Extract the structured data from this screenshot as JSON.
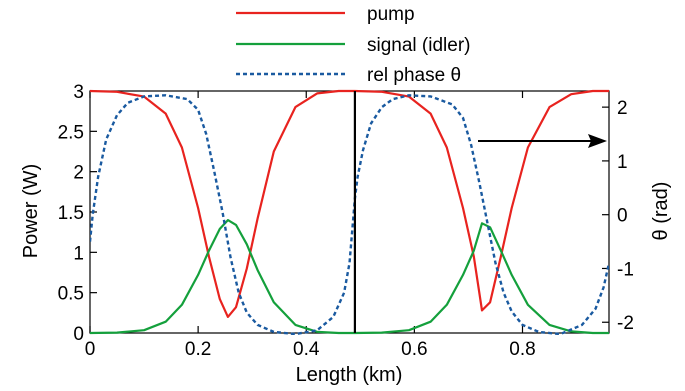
{
  "chart_data": {
    "type": "line",
    "xlabel": "Length (km)",
    "ylabel": "Power (W)",
    "y2label": "θ  (rad)",
    "xlim": [
      0,
      0.96
    ],
    "ylim": [
      0,
      3
    ],
    "y2lim": [
      -2.2,
      2.3
    ],
    "xticks": [
      "0",
      "0.2",
      "0.4",
      "0.6",
      "0.8"
    ],
    "xtick_values": [
      0,
      0.2,
      0.4,
      0.6,
      0.8
    ],
    "yticks": [
      "0",
      "0.5",
      "1",
      "1.5",
      "2",
      "2.5",
      "3"
    ],
    "ytick_values": [
      0,
      0.5,
      1,
      1.5,
      2,
      2.5,
      3
    ],
    "y2ticks": [
      "-2",
      "-1",
      "0",
      "1",
      "2"
    ],
    "y2tick_values": [
      -2,
      -1,
      0,
      1,
      2
    ],
    "legend_position": "top-center",
    "vertical_line_x": 0.49,
    "arrow_direction": "right",
    "series": [
      {
        "name": "pump",
        "axis": "left",
        "color": "#e8231f",
        "style": "solid",
        "x": [
          0,
          0.05,
          0.1,
          0.14,
          0.17,
          0.2,
          0.22,
          0.24,
          0.255,
          0.27,
          0.29,
          0.31,
          0.34,
          0.38,
          0.42,
          0.46,
          0.49,
          0.54,
          0.59,
          0.63,
          0.66,
          0.69,
          0.71,
          0.725,
          0.74,
          0.76,
          0.78,
          0.81,
          0.85,
          0.89,
          0.93,
          0.96
        ],
        "values": [
          3.0,
          2.99,
          2.93,
          2.72,
          2.3,
          1.55,
          0.95,
          0.42,
          0.2,
          0.32,
          0.8,
          1.42,
          2.25,
          2.8,
          2.97,
          3.0,
          3.0,
          2.99,
          2.93,
          2.72,
          2.3,
          1.55,
          0.95,
          0.28,
          0.38,
          0.95,
          1.55,
          2.3,
          2.8,
          2.96,
          3.0,
          3.0
        ]
      },
      {
        "name": "signal (idler)",
        "axis": "left",
        "color": "#14a03c",
        "style": "solid",
        "x": [
          0,
          0.05,
          0.1,
          0.14,
          0.17,
          0.2,
          0.22,
          0.24,
          0.255,
          0.27,
          0.29,
          0.31,
          0.34,
          0.38,
          0.42,
          0.46,
          0.49,
          0.54,
          0.59,
          0.63,
          0.66,
          0.69,
          0.71,
          0.725,
          0.74,
          0.76,
          0.78,
          0.81,
          0.85,
          0.89,
          0.93,
          0.96
        ],
        "values": [
          0.0,
          0.005,
          0.035,
          0.14,
          0.35,
          0.72,
          1.02,
          1.29,
          1.4,
          1.34,
          1.1,
          0.78,
          0.38,
          0.1,
          0.015,
          0.0,
          0.0,
          0.005,
          0.035,
          0.14,
          0.35,
          0.72,
          1.02,
          1.36,
          1.31,
          1.02,
          0.72,
          0.35,
          0.1,
          0.02,
          0.0,
          0.0
        ]
      },
      {
        "name": "rel phase θ",
        "axis": "right",
        "color": "#1a5aa0",
        "style": "dashed",
        "x": [
          0,
          0.005,
          0.015,
          0.03,
          0.05,
          0.07,
          0.1,
          0.14,
          0.18,
          0.2,
          0.215,
          0.23,
          0.245,
          0.26,
          0.275,
          0.29,
          0.31,
          0.34,
          0.38,
          0.42,
          0.45,
          0.47,
          0.48,
          0.49,
          0.495,
          0.505,
          0.52,
          0.54,
          0.56,
          0.59,
          0.63,
          0.67,
          0.69,
          0.705,
          0.72,
          0.735,
          0.75,
          0.765,
          0.78,
          0.8,
          0.83,
          0.87,
          0.91,
          0.935,
          0.95,
          0.96
        ],
        "values": [
          -0.5,
          0.0,
          0.7,
          1.4,
          1.85,
          2.08,
          2.2,
          2.22,
          2.15,
          1.95,
          1.5,
          0.8,
          0.05,
          -0.8,
          -1.45,
          -1.82,
          -2.05,
          -2.18,
          -2.22,
          -2.15,
          -1.9,
          -1.45,
          -0.9,
          0.3,
          0.7,
          1.2,
          1.7,
          2.0,
          2.15,
          2.22,
          2.2,
          2.05,
          1.8,
          1.3,
          0.6,
          -0.15,
          -0.9,
          -1.45,
          -1.8,
          -2.05,
          -2.18,
          -2.22,
          -2.05,
          -1.75,
          -1.35,
          -0.9
        ]
      }
    ]
  }
}
